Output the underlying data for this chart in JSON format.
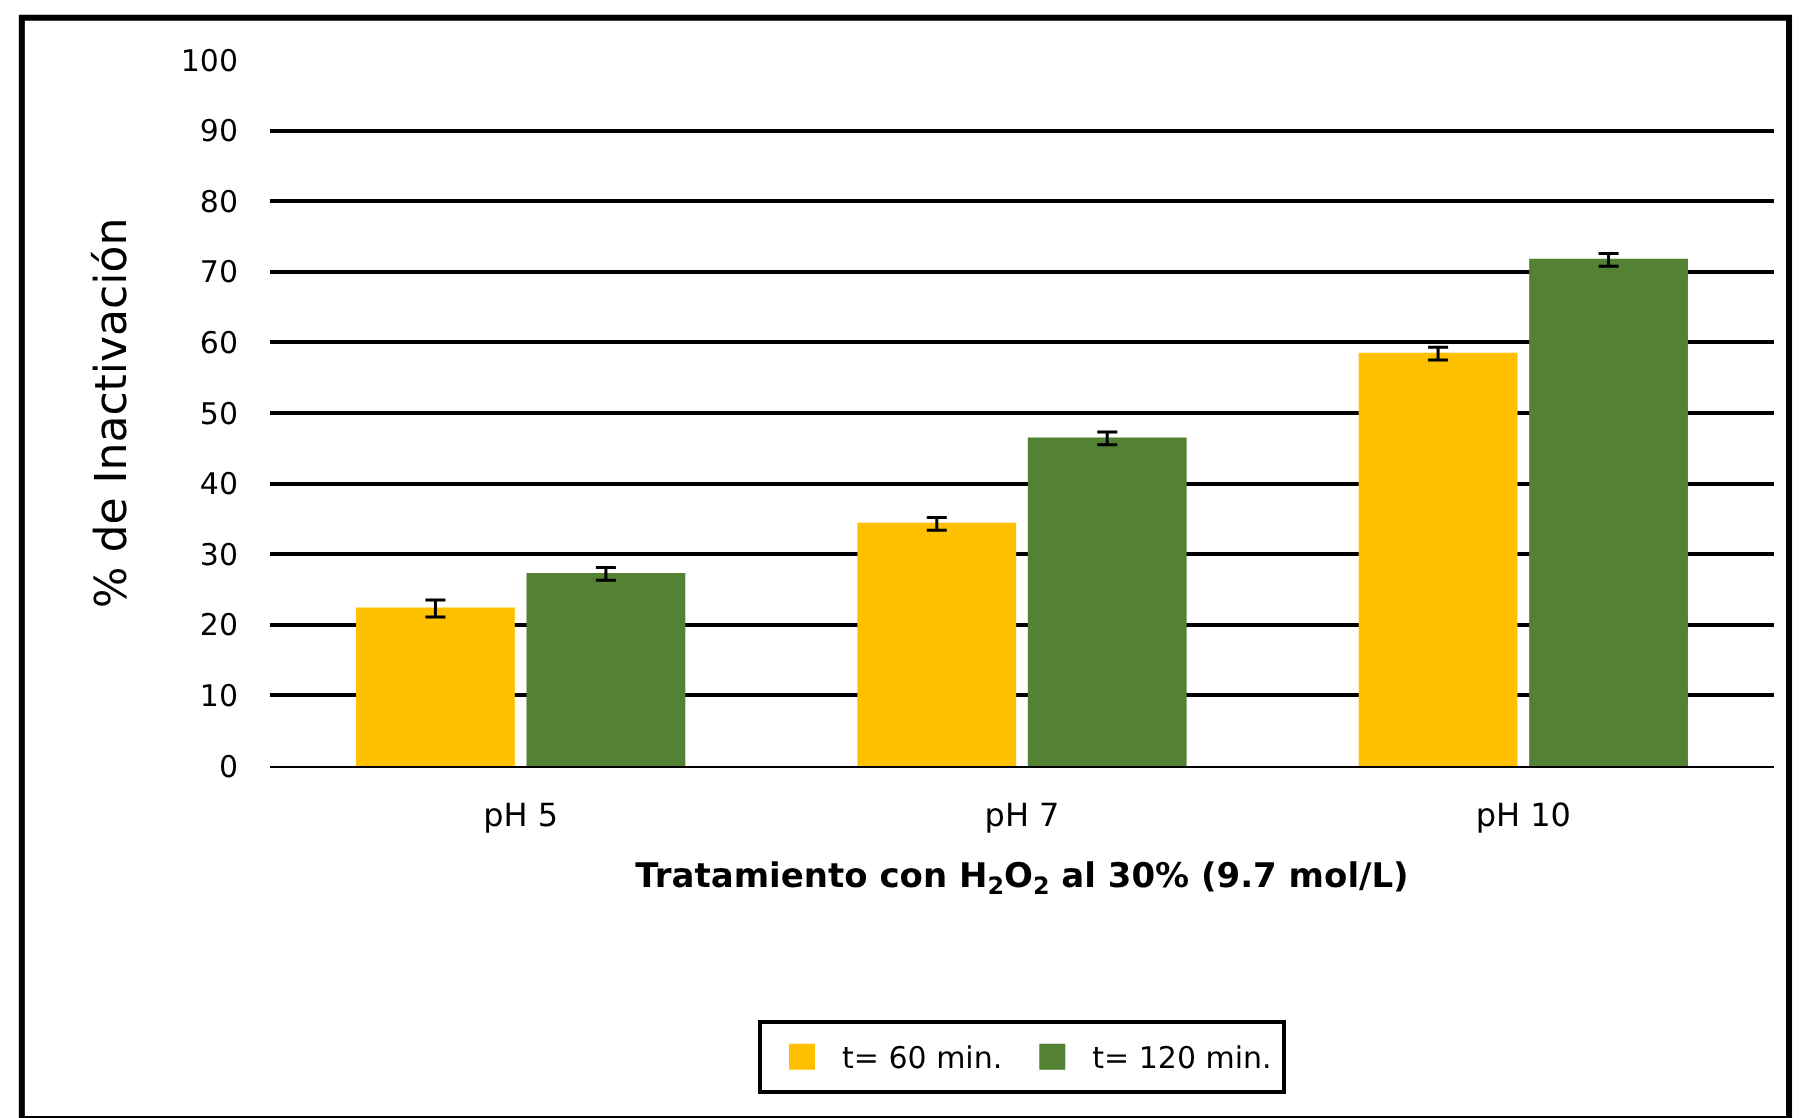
{
  "chart_data": {
    "type": "bar",
    "xlabel": "Tratamiento con H$_{2}$O$_{2}$ al 30% (9.7 mol/L)",
    "ylabel": "% de Inactivación",
    "categories": [
      "pH 5",
      "pH 7",
      "pH 10"
    ],
    "series": [
      {
        "name": "t= 60 min.",
        "color": "#ffc000",
        "values": [
          22.3,
          34.3,
          58.4
        ],
        "errors": [
          1.2,
          0.9,
          0.9
        ]
      },
      {
        "name": "t= 120 min.",
        "color": "#548235",
        "values": [
          27.2,
          46.4,
          71.7
        ],
        "errors": [
          0.9,
          0.9,
          0.9
        ]
      }
    ],
    "ylim": [
      0,
      100
    ],
    "yticks": [
      0,
      10,
      20,
      30,
      40,
      50,
      60,
      70,
      80,
      90,
      100
    ],
    "grid": "y",
    "legend": "bottom"
  }
}
